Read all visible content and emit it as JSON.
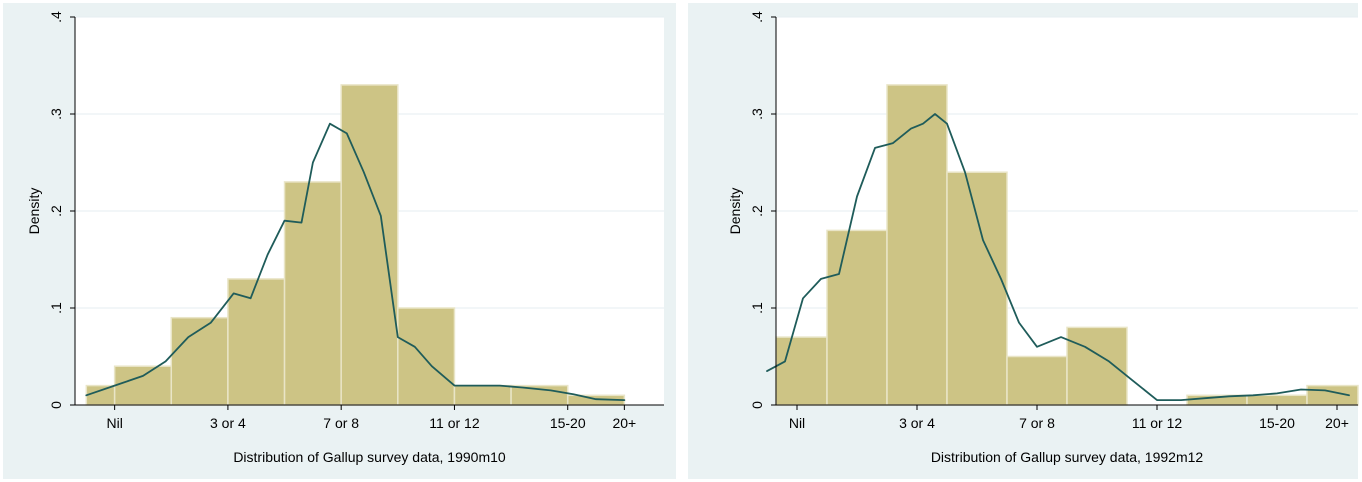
{
  "colors": {
    "outer_bg": "#eaf2f3",
    "plot_bg": "#ffffff",
    "grid": "#e6eef0",
    "bar_fill": "#cdc485",
    "bar_stroke": "#e9e5c7",
    "curve": "#1f5c5a",
    "axis": "#000000",
    "text": "#000000"
  },
  "chart_data": [
    {
      "type": "bar",
      "ylabel": "Density",
      "xlabel": "Distribution of Gallup survey data, 1990m10",
      "ylim": [
        0,
        0.4
      ],
      "yticks": [
        0,
        0.1,
        0.2,
        0.3,
        0.4
      ],
      "ytick_labels": [
        "0",
        ".1",
        ".2",
        ".3",
        ".4"
      ],
      "xlim": [
        0.8,
        11.2
      ],
      "xticks": [
        1.5,
        3.5,
        5.5,
        7.5,
        9.5,
        10.5
      ],
      "xtick_labels": [
        "Nil",
        "3 or 4",
        "7 or 8",
        "11 or 12",
        "15-20",
        "20+"
      ],
      "bins": [
        {
          "x0": 1,
          "x1": 1.5,
          "value": 0.02
        },
        {
          "x0": 1.5,
          "x1": 2.5,
          "value": 0.04
        },
        {
          "x0": 2.5,
          "x1": 3.5,
          "value": 0.09
        },
        {
          "x0": 3.5,
          "x1": 4.5,
          "value": 0.13
        },
        {
          "x0": 4.5,
          "x1": 5.5,
          "value": 0.23
        },
        {
          "x0": 5.5,
          "x1": 6.5,
          "value": 0.33
        },
        {
          "x0": 6.5,
          "x1": 7.5,
          "value": 0.1
        },
        {
          "x0": 7.5,
          "x1": 8.5,
          "value": 0.02
        },
        {
          "x0": 8.5,
          "x1": 9.5,
          "value": 0.02
        },
        {
          "x0": 9.5,
          "x1": 10.5,
          "value": 0.01
        }
      ],
      "density": {
        "x": [
          1.0,
          1.5,
          2.0,
          2.4,
          2.8,
          3.2,
          3.6,
          3.9,
          4.2,
          4.5,
          4.8,
          5.0,
          5.3,
          5.6,
          5.9,
          6.2,
          6.5,
          6.8,
          7.1,
          7.5,
          7.9,
          8.3,
          8.7,
          9.2,
          9.6,
          10.0,
          10.5
        ],
        "y": [
          0.01,
          0.02,
          0.03,
          0.045,
          0.07,
          0.085,
          0.115,
          0.11,
          0.155,
          0.19,
          0.188,
          0.25,
          0.29,
          0.28,
          0.24,
          0.195,
          0.07,
          0.06,
          0.04,
          0.02,
          0.02,
          0.02,
          0.018,
          0.015,
          0.011,
          0.006,
          0.005
        ]
      }
    },
    {
      "type": "bar",
      "ylabel": "Density",
      "xlabel": "Distribution of Gallup survey data, 1992m12",
      "ylim": [
        0,
        0.4
      ],
      "yticks": [
        0,
        0.1,
        0.2,
        0.3,
        0.4
      ],
      "ytick_labels": [
        "0",
        ".1",
        ".2",
        ".3",
        ".4"
      ],
      "xlim": [
        0.65,
        10.35
      ],
      "xticks": [
        1.0,
        3.0,
        5.0,
        7.0,
        9.0,
        10.0
      ],
      "xtick_labels": [
        "Nil",
        "3 or 4",
        "7 or 8",
        "11 or 12",
        "15-20",
        "20+"
      ],
      "bins": [
        {
          "x0": 0.5,
          "x1": 1.5,
          "value": 0.07
        },
        {
          "x0": 1.5,
          "x1": 2.5,
          "value": 0.18
        },
        {
          "x0": 2.5,
          "x1": 3.5,
          "value": 0.33
        },
        {
          "x0": 3.5,
          "x1": 4.5,
          "value": 0.24
        },
        {
          "x0": 4.5,
          "x1": 5.5,
          "value": 0.05
        },
        {
          "x0": 5.5,
          "x1": 6.5,
          "value": 0.08
        },
        {
          "x0": 6.5,
          "x1": 7.5,
          "value": 0
        },
        {
          "x0": 7.5,
          "x1": 8.5,
          "value": 0.01
        },
        {
          "x0": 8.5,
          "x1": 9.5,
          "value": 0.01
        },
        {
          "x0": 9.5,
          "x1": 10.5,
          "value": 0.02
        }
      ],
      "density": {
        "x": [
          0.5,
          0.8,
          1.1,
          1.4,
          1.7,
          2.0,
          2.3,
          2.6,
          2.9,
          3.1,
          3.3,
          3.5,
          3.8,
          4.1,
          4.4,
          4.7,
          5.0,
          5.4,
          5.8,
          6.2,
          6.6,
          7.0,
          7.4,
          7.8,
          8.2,
          8.6,
          9.0,
          9.4,
          9.8,
          10.2
        ],
        "y": [
          0.035,
          0.045,
          0.11,
          0.13,
          0.135,
          0.215,
          0.265,
          0.27,
          0.285,
          0.29,
          0.3,
          0.29,
          0.24,
          0.17,
          0.13,
          0.085,
          0.06,
          0.07,
          0.06,
          0.045,
          0.025,
          0.005,
          0.005,
          0.007,
          0.009,
          0.01,
          0.012,
          0.016,
          0.015,
          0.01
        ]
      }
    }
  ]
}
